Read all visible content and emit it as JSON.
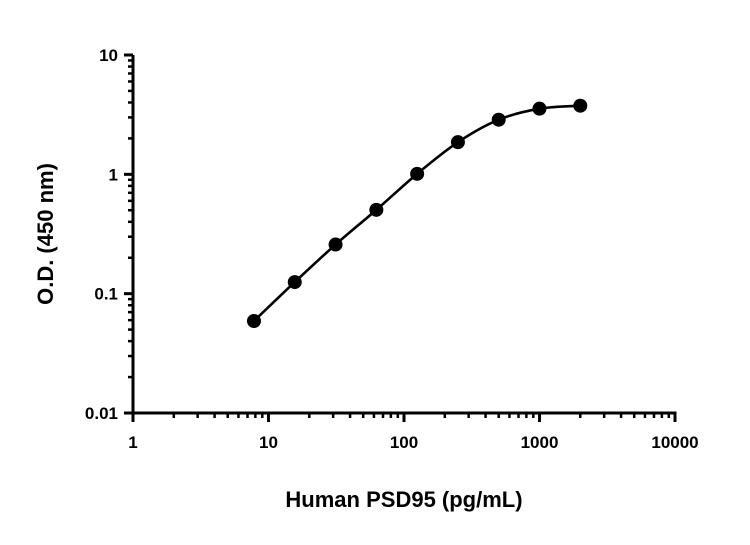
{
  "chart_data": {
    "type": "scatter",
    "xlabel": "Human PSD95 (pg/mL)",
    "ylabel": "O.D. (450 nm)",
    "xscale": "log",
    "yscale": "log",
    "xlim": [
      1,
      10000
    ],
    "ylim": [
      0.01,
      10
    ],
    "xticks": [
      "1",
      "10",
      "100",
      "1000",
      "10000"
    ],
    "yticks": [
      "0.01",
      "0.1",
      "1",
      "10"
    ],
    "grid": false,
    "legend": "none",
    "color": "#000000",
    "fit_line": true,
    "series": [
      {
        "x": [
          7.8125,
          15.625,
          31.25,
          62.5,
          125,
          250,
          500,
          1000,
          2000
        ],
        "y": [
          0.059,
          0.125,
          0.258,
          0.504,
          1.01,
          1.86,
          2.87,
          3.55,
          3.76
        ]
      }
    ]
  }
}
